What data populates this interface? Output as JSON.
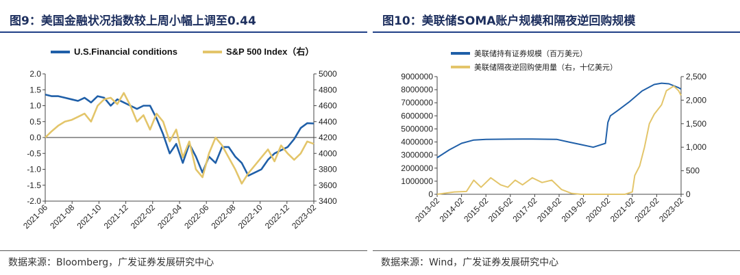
{
  "left": {
    "title": "图9：美国金融状况指数较上周小幅上调至0.44",
    "source": "数据来源：Bloomberg，广发证券发展研究中心",
    "chart_data": {
      "type": "line",
      "title": "图9：美国金融状况指数较上周小幅上调至0.44",
      "x_tick_labels": [
        "2021-06",
        "2021-08",
        "2021-10",
        "2021-12",
        "2022-02",
        "2022-04",
        "2022-06",
        "2022-08",
        "2022-10",
        "2022-12",
        "2023-02"
      ],
      "y_left": {
        "ylim": [
          -2.0,
          2.0
        ],
        "ticks": [
          "2.0",
          "1.5",
          "1.0",
          "0.5",
          "0.0",
          "-0.5",
          "-1.0",
          "-1.5",
          "-2.0"
        ]
      },
      "y_right": {
        "ylim": [
          3400,
          5000
        ],
        "ticks": [
          "5000",
          "4800",
          "4600",
          "4400",
          "4200",
          "4000",
          "3800",
          "3600",
          "3400"
        ]
      },
      "legend": [
        "U.S.Financial conditions",
        "S&P 500 Index（右）"
      ],
      "colors": [
        "#1f5fa8",
        "#e3c56a"
      ],
      "series": [
        {
          "name": "U.S.Financial conditions",
          "axis": "left",
          "x": [
            0,
            0.5,
            1,
            1.5,
            2,
            2.5,
            3,
            3.5,
            4,
            4.5,
            5,
            5.5,
            6,
            6.5,
            7,
            7.5,
            8,
            8.5,
            9,
            9.5,
            10,
            10.5,
            11,
            11.5,
            12,
            12.5,
            13,
            13.5,
            14,
            14.5,
            15,
            15.5,
            16,
            16.5,
            17,
            17.5,
            18,
            18.5,
            19,
            19.5,
            20,
            20.5
          ],
          "values": [
            1.35,
            1.3,
            1.3,
            1.25,
            1.2,
            1.15,
            1.25,
            1.1,
            1.3,
            1.25,
            1.0,
            1.2,
            1.1,
            1.0,
            0.9,
            1.0,
            1.0,
            0.6,
            0.1,
            -0.5,
            -0.2,
            -0.8,
            -0.2,
            -0.6,
            -1.1,
            -0.6,
            -0.8,
            -0.3,
            -0.3,
            -0.6,
            -0.8,
            -1.2,
            -1.1,
            -1.0,
            -0.7,
            -0.5,
            -0.4,
            -0.3,
            -0.05,
            0.3,
            0.45,
            0.44
          ]
        },
        {
          "name": "S&P 500 Index（右）",
          "axis": "right",
          "x": [
            0,
            0.5,
            1,
            1.5,
            2,
            2.5,
            3,
            3.5,
            4,
            4.5,
            5,
            5.5,
            6,
            6.5,
            7,
            7.5,
            8,
            8.5,
            9,
            9.5,
            10,
            10.5,
            11,
            11.5,
            12,
            12.5,
            13,
            13.5,
            14,
            14.5,
            15,
            15.5,
            16,
            16.5,
            17,
            17.5,
            18,
            18.5,
            19,
            19.5,
            20,
            20.5
          ],
          "values": [
            4200,
            4280,
            4350,
            4400,
            4420,
            4460,
            4500,
            4400,
            4600,
            4680,
            4700,
            4620,
            4760,
            4600,
            4400,
            4480,
            4300,
            4500,
            4400,
            4150,
            4300,
            3950,
            4150,
            3800,
            3700,
            4000,
            4200,
            4100,
            3950,
            3800,
            3620,
            3750,
            3850,
            3950,
            4050,
            3900,
            4100,
            4000,
            3920,
            4000,
            4150,
            4120
          ]
        }
      ]
    }
  },
  "right": {
    "title": "图10：美联储SOMA账户规模和隔夜逆回购规模",
    "source": "数据来源：Wind，广发证券发展研究中心",
    "chart_data": {
      "type": "line",
      "title": "图10：美联储SOMA账户规模和隔夜逆回购规模",
      "x_tick_labels": [
        "2013-02",
        "2014-02",
        "2015-02",
        "2016-02",
        "2017-02",
        "2018-02",
        "2019-02",
        "2020-02",
        "2021-02",
        "2022-02",
        "2023-02"
      ],
      "y_left": {
        "ylim": [
          0,
          9000000
        ],
        "ticks": [
          "9000000",
          "8000000",
          "7000000",
          "6000000",
          "5000000",
          "4000000",
          "3000000",
          "2000000",
          "1000000",
          "0"
        ]
      },
      "y_right": {
        "ylim": [
          0,
          2500
        ],
        "ticks": [
          "2,500",
          "2,000",
          "1,500",
          "1,000",
          "500",
          "0"
        ]
      },
      "legend": [
        "美联储持有证券规模（百万美元）",
        "美联储隔夜逆回购使用量（右，十亿美元）"
      ],
      "colors": [
        "#1f5fa8",
        "#e3c56a"
      ],
      "series": [
        {
          "name": "美联储持有证券规模（百万美元）",
          "axis": "left",
          "x": [
            2013.1,
            2013.6,
            2014.1,
            2014.6,
            2015.1,
            2016,
            2017,
            2018,
            2018.5,
            2019,
            2019.5,
            2020,
            2020.1,
            2020.2,
            2020.5,
            2021,
            2021.5,
            2022,
            2022.3,
            2022.6,
            2023,
            2023.1
          ],
          "values": [
            2800000,
            3400000,
            3900000,
            4150000,
            4200000,
            4220000,
            4230000,
            4200000,
            4000000,
            3800000,
            3600000,
            3900000,
            5500000,
            6000000,
            6400000,
            7100000,
            7900000,
            8400000,
            8500000,
            8450000,
            8150000,
            8050000
          ]
        },
        {
          "name": "美联储隔夜逆回购使用量（右，十亿美元）",
          "axis": "right",
          "x": [
            2013.1,
            2013.8,
            2014.3,
            2014.6,
            2014.9,
            2015.3,
            2015.7,
            2016.0,
            2016.3,
            2016.6,
            2017.0,
            2017.4,
            2017.8,
            2018.2,
            2018.6,
            2019,
            2020,
            2020.8,
            2021.1,
            2021.2,
            2021.4,
            2021.6,
            2021.8,
            2022.0,
            2022.3,
            2022.5,
            2022.8,
            2023.0,
            2023.1
          ],
          "values": [
            0,
            50,
            60,
            300,
            150,
            350,
            200,
            150,
            300,
            200,
            350,
            250,
            300,
            100,
            20,
            0,
            0,
            0,
            50,
            400,
            600,
            1000,
            1500,
            1700,
            1900,
            2200,
            2300,
            2200,
            2100
          ]
        }
      ]
    }
  }
}
